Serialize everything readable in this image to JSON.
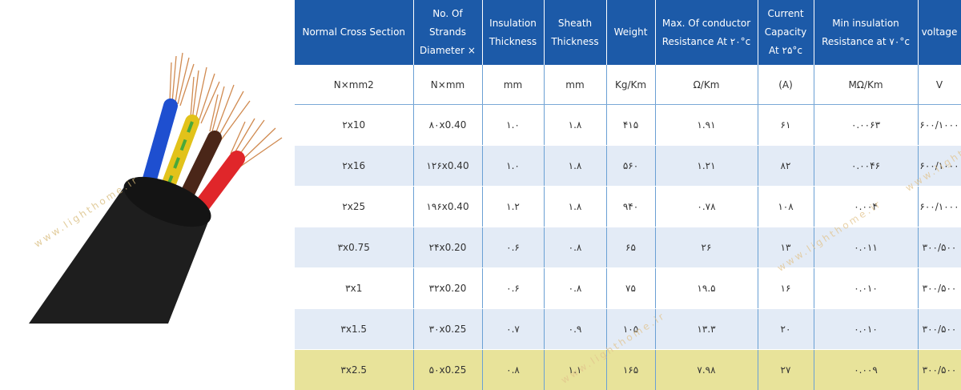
{
  "watermark": "www.lighthome.ir",
  "table": {
    "headers": [
      "Normal Cross Section",
      "No. Of Strands Diameter ×",
      "Insulation Thickness",
      "Sheath Thickness",
      "Weight",
      "Max. Of conductor Resistance At ۲۰°c",
      "Current Capacity At ۲۵°c",
      "Min insulation Resistance at ۷۰°c",
      "voltage"
    ],
    "units": [
      "N×mm2",
      "N×mm",
      "mm",
      "mm",
      "Kg/Km",
      "Ω/Km",
      "(A)",
      "MΩ/Km",
      "V"
    ],
    "rows": [
      [
        "۲x10",
        "۸۰x0.40",
        "۱.۰",
        "۱.۸",
        "۴۱۵",
        "۱.۹۱",
        "۶۱",
        "۰.۰۰۶۳",
        "۶۰۰/۱۰۰۰"
      ],
      [
        "۲x16",
        "۱۲۶x0.40",
        "۱.۰",
        "۱.۸",
        "۵۶۰",
        "۱.۲۱",
        "۸۲",
        "۰.۰۰۴۶",
        "۶۰۰/۱۰۰۰"
      ],
      [
        "۲x25",
        "۱۹۶x0.40",
        "۱.۲",
        "۱.۸",
        "۹۴۰",
        "۰.۷۸",
        "۱۰۸",
        "۰.۰۰۴",
        "۶۰۰/۱۰۰۰"
      ],
      [
        "۳x0.75",
        "۲۴x0.20",
        "۰.۶",
        "۰.۸",
        "۶۵",
        "۲۶",
        "۱۳",
        "۰.۰۱۱",
        "۳۰۰/۵۰۰"
      ],
      [
        "۳x1",
        "۳۲x0.20",
        "۰.۶",
        "۰.۸",
        "۷۵",
        "۱۹.۵",
        "۱۶",
        "۰.۰۱۰",
        "۳۰۰/۵۰۰"
      ],
      [
        "۳x1.5",
        "۳۰x0.25",
        "۰.۷",
        "۰.۹",
        "۱۰۵",
        "۱۳.۳",
        "۲۰",
        "۰.۰۱۰",
        "۳۰۰/۵۰۰"
      ],
      [
        "۳x2.5",
        "۵۰x0.25",
        "۰.۸",
        "۱.۱",
        "۱۶۵",
        "۷.۹۸",
        "۲۷",
        "۰.۰۰۹",
        "۳۰۰/۵۰۰"
      ]
    ]
  },
  "colors": {
    "header_bg": "#1c5aa8",
    "row_alt_bg": "#e3ebf6",
    "highlight_row_bg": "#e8e39a"
  }
}
